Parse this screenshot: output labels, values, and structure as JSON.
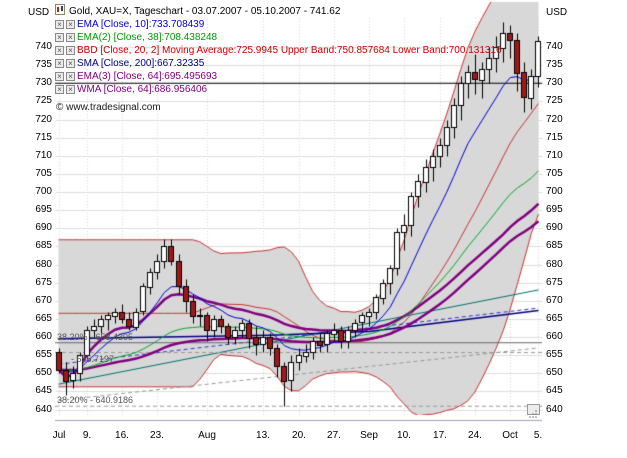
{
  "header": {
    "title": "Gold, XAU=X, Tageschart - 03.07.2007 - 05.10.2007 - 741.62"
  },
  "watermark": {
    "text": "© www.tradesignal.com"
  },
  "axes": {
    "unit_left": "USD",
    "unit_right": "USD",
    "y_ticks": [
      740,
      735,
      730,
      725,
      720,
      715,
      710,
      705,
      700,
      695,
      690,
      685,
      680,
      675,
      670,
      665,
      660,
      655,
      650,
      645,
      640
    ],
    "x_labels": [
      [
        "Jul",
        0
      ],
      [
        "9.",
        4
      ],
      [
        "16.",
        9
      ],
      [
        "23.",
        14
      ],
      [
        "Aug",
        21
      ],
      [
        "13.",
        29
      ],
      [
        "20.",
        34
      ],
      [
        "27.",
        39
      ],
      [
        "Sep",
        44
      ],
      [
        "10.",
        49
      ],
      [
        "17.",
        54
      ],
      [
        "24.",
        59
      ],
      [
        "Oct",
        64
      ],
      [
        "5.",
        68
      ]
    ]
  },
  "legend": {
    "items": [
      {
        "label": "EMA [Close, 10]:733.708439",
        "color": "#0000cc"
      },
      {
        "label": "EMA(2) [Close, 38]:708.438248",
        "color": "#009900"
      },
      {
        "label": "BBD [Close, 20, 2] Moving Average:725.9945 Upper Band:750.857684 Lower Band:700.131316",
        "color": "#cc0000"
      },
      {
        "label": "SMA [Close, 200]:667.32335",
        "color": "#000080"
      },
      {
        "label": "EMA(3) [Close, 64]:695.495693",
        "color": "#800080"
      },
      {
        "label": "WMA [Close, 64]:686.956406",
        "color": "#800080"
      }
    ]
  },
  "chart_data": {
    "type": "candlestick",
    "instrument": "Gold, XAU=X",
    "timeframe": "Tageschart",
    "date_range": "03.07.2007 - 05.10.2007",
    "last_price": 741.62,
    "ylabel": "USD",
    "ylim": [
      638.5,
      748
    ],
    "grid_color": "#dedede",
    "up_color": "#ffffff",
    "down_color": "#a01818",
    "wick_color": "#000000",
    "body_border_color": "#000000",
    "dates": [
      "03.07.",
      "04.07.",
      "05.07.",
      "06.07.",
      "09.07.",
      "10.07.",
      "11.07.",
      "12.07.",
      "13.07.",
      "16.07.",
      "17.07.",
      "18.07.",
      "19.07.",
      "20.07.",
      "23.07.",
      "24.07.",
      "25.07.",
      "26.07.",
      "27.07.",
      "30.07.",
      "31.07.",
      "01.08.",
      "02.08.",
      "03.08.",
      "06.08.",
      "07.08.",
      "08.08.",
      "09.08.",
      "10.08.",
      "13.08.",
      "14.08.",
      "15.08.",
      "16.08.",
      "17.08.",
      "20.08.",
      "21.08.",
      "22.08.",
      "23.08.",
      "24.08.",
      "27.08.",
      "28.08.",
      "29.08.",
      "30.08.",
      "31.08.",
      "03.09.",
      "04.09.",
      "05.09.",
      "06.09.",
      "07.09.",
      "10.09.",
      "11.09.",
      "12.09.",
      "13.09.",
      "14.09.",
      "17.09.",
      "18.09.",
      "19.09.",
      "20.09.",
      "21.09.",
      "24.09.",
      "25.09.",
      "26.09.",
      "27.09.",
      "28.09.",
      "01.10.",
      "02.10.",
      "03.10.",
      "04.10.",
      "05.10."
    ],
    "ohlc": [
      [
        656,
        657,
        650,
        651
      ],
      [
        651,
        653,
        644,
        648
      ],
      [
        648,
        652,
        646,
        650
      ],
      [
        650,
        656,
        648,
        655
      ],
      [
        655,
        663,
        654,
        662
      ],
      [
        662,
        665,
        660,
        663
      ],
      [
        663,
        666,
        661,
        665
      ],
      [
        665,
        667,
        662,
        666
      ],
      [
        666,
        668,
        664,
        667
      ],
      [
        667,
        669,
        664,
        665
      ],
      [
        665,
        667,
        662,
        663
      ],
      [
        663,
        668,
        662,
        667
      ],
      [
        667,
        675,
        666,
        674
      ],
      [
        674,
        679,
        672,
        678
      ],
      [
        678,
        683,
        676,
        681
      ],
      [
        681,
        687,
        679,
        685
      ],
      [
        685,
        687,
        680,
        681
      ],
      [
        681,
        683,
        672,
        674
      ],
      [
        674,
        676,
        667,
        670
      ],
      [
        670,
        672,
        664,
        666
      ],
      [
        666,
        668,
        663,
        666
      ],
      [
        666,
        667,
        659,
        662
      ],
      [
        662,
        666,
        660,
        665
      ],
      [
        665,
        666,
        661,
        663
      ],
      [
        663,
        664,
        658,
        660
      ],
      [
        660,
        663,
        658,
        662
      ],
      [
        662,
        665,
        660,
        664
      ],
      [
        664,
        665,
        657,
        660
      ],
      [
        660,
        663,
        655,
        658
      ],
      [
        658,
        662,
        656,
        660
      ],
      [
        660,
        661,
        655,
        657
      ],
      [
        657,
        658,
        649,
        652
      ],
      [
        652,
        653,
        641,
        648
      ],
      [
        648,
        655,
        645,
        653
      ],
      [
        653,
        657,
        651,
        655
      ],
      [
        655,
        658,
        653,
        656
      ],
      [
        656,
        660,
        654,
        659
      ],
      [
        659,
        661,
        656,
        658
      ],
      [
        658,
        662,
        656,
        661
      ],
      [
        661,
        664,
        659,
        662
      ],
      [
        662,
        663,
        657,
        659
      ],
      [
        659,
        663,
        657,
        662
      ],
      [
        662,
        665,
        660,
        664
      ],
      [
        664,
        667,
        662,
        666
      ],
      [
        666,
        668,
        663,
        667
      ],
      [
        667,
        672,
        665,
        671
      ],
      [
        671,
        676,
        669,
        675
      ],
      [
        675,
        680,
        672,
        679
      ],
      [
        679,
        690,
        677,
        689
      ],
      [
        689,
        694,
        684,
        691
      ],
      [
        691,
        700,
        688,
        699
      ],
      [
        699,
        705,
        696,
        703
      ],
      [
        703,
        709,
        700,
        707
      ],
      [
        707,
        712,
        703,
        710
      ],
      [
        710,
        715,
        707,
        713
      ],
      [
        713,
        720,
        710,
        718
      ],
      [
        718,
        726,
        715,
        724
      ],
      [
        724,
        732,
        720,
        730
      ],
      [
        730,
        735,
        726,
        733
      ],
      [
        733,
        738,
        727,
        731
      ],
      [
        731,
        736,
        726,
        734
      ],
      [
        734,
        740,
        730,
        737
      ],
      [
        737,
        743,
        733,
        740
      ],
      [
        740,
        747,
        736,
        744
      ],
      [
        744,
        746,
        737,
        742
      ],
      [
        742,
        744,
        728,
        733
      ],
      [
        733,
        736,
        722,
        726
      ],
      [
        726,
        734,
        723,
        732
      ],
      [
        732,
        743,
        729,
        741.62
      ]
    ],
    "overlays": [
      {
        "name": "ema10",
        "type": "ema",
        "period": 10,
        "color": "#0000dd",
        "width": 1,
        "value": 733.708439
      },
      {
        "name": "ema38",
        "type": "ema",
        "period": 38,
        "color": "#00aa22",
        "width": 1,
        "value": 708.438248
      },
      {
        "name": "bollinger",
        "type": "bollinger",
        "period": 20,
        "mult": 2,
        "line_color": "#cc3333",
        "fill_color": "#d8d8d8",
        "mid_value": 725.9945,
        "upper_value": 750.857684,
        "lower_value": 700.131316
      },
      {
        "name": "sma200",
        "type": "keyline",
        "color": "#000080",
        "width": 1.5,
        "value": 667.32335,
        "points": [
          [
            0,
            659.5
          ],
          [
            30,
            660.5
          ],
          [
            44,
            661.5
          ],
          [
            68,
            667.32
          ]
        ]
      },
      {
        "name": "ema64",
        "type": "ema",
        "period": 64,
        "color": "#800080",
        "width": 2.5,
        "value": 695.495693
      },
      {
        "name": "wma64",
        "type": "wma",
        "period": 64,
        "color": "#800080",
        "width": 2.5,
        "value": 686.956406
      }
    ],
    "trendlines": [
      {
        "name": "teal-trendline",
        "color": "#007070",
        "style": "solid",
        "start": 647,
        "end": 673
      },
      {
        "name": "blue-dashed-trendline",
        "color": "#3333cc",
        "style": "dashed",
        "start": 652.5,
        "end": 668
      },
      {
        "name": "gray-dashed-trendline",
        "color": "#999999",
        "style": "dashed",
        "start": 642.5,
        "end": 657
      }
    ],
    "hlines": [
      {
        "value": 730,
        "color": "#000000",
        "style": "solid",
        "width": 1,
        "label": ""
      },
      {
        "value": 658.4305,
        "color": "#666666",
        "style": "solid",
        "width": 1,
        "label": "38.20% - 658.4305"
      },
      {
        "value": 655.7197,
        "color": "#999999",
        "style": "dashed",
        "width": 1,
        "label": "- 655.7197",
        "label_dx": 14,
        "label_dy": 1
      },
      {
        "value": 640.92,
        "color": "#999999",
        "style": "dashed",
        "width": 1,
        "label": "38.20% - 640.9186"
      }
    ]
  }
}
